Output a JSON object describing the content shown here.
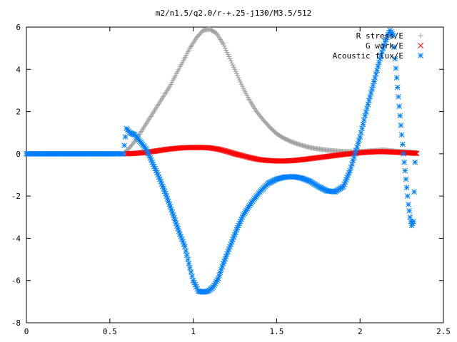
{
  "chart_data": {
    "type": "scatter",
    "title": "m2/n1.5/q2.0/r-+.25-j130/M3.5/512",
    "xlabel": "",
    "ylabel": "",
    "xlim": [
      0,
      2.5
    ],
    "ylim": [
      -8,
      6
    ],
    "x_ticks": [
      "0",
      "0.5",
      "1",
      "1.5",
      "2",
      "2.5"
    ],
    "y_ticks": [
      "-8",
      "-6",
      "-4",
      "-2",
      "0",
      "2",
      "4",
      "6"
    ],
    "grid": false,
    "legend_position": "top-right",
    "series": [
      {
        "name": "R stress/E",
        "marker": "plus",
        "color": "#a0a0a0",
        "x": [
          0.58,
          0.62,
          0.66,
          0.7,
          0.74,
          0.78,
          0.82,
          0.86,
          0.9,
          0.94,
          0.98,
          1.02,
          1.06,
          1.1,
          1.14,
          1.18,
          1.22,
          1.26,
          1.3,
          1.34,
          1.38,
          1.42,
          1.46,
          1.5,
          1.54,
          1.58,
          1.62,
          1.66,
          1.7,
          1.74,
          1.78,
          1.82,
          1.86,
          1.9,
          1.94,
          1.98,
          2.02,
          2.06,
          2.1,
          2.14,
          2.18,
          2.22,
          2.26,
          2.3,
          2.34
        ],
        "y": [
          0.0,
          0.3,
          0.7,
          1.2,
          1.7,
          2.2,
          2.7,
          3.2,
          3.8,
          4.4,
          5.0,
          5.5,
          5.85,
          5.9,
          5.7,
          5.2,
          4.5,
          3.8,
          3.1,
          2.5,
          2.0,
          1.6,
          1.25,
          0.95,
          0.75,
          0.6,
          0.48,
          0.38,
          0.3,
          0.24,
          0.2,
          0.16,
          0.13,
          0.11,
          0.1,
          0.1,
          0.12,
          0.14,
          0.16,
          0.18,
          0.15,
          0.12,
          0.1,
          0.08,
          0.06
        ]
      },
      {
        "name": "G work/E",
        "marker": "cross",
        "color": "#ff0000",
        "x": [
          0.6,
          0.65,
          0.7,
          0.75,
          0.8,
          0.85,
          0.9,
          0.95,
          1.0,
          1.05,
          1.1,
          1.15,
          1.2,
          1.25,
          1.3,
          1.35,
          1.4,
          1.45,
          1.5,
          1.55,
          1.6,
          1.65,
          1.7,
          1.75,
          1.8,
          1.85,
          1.9,
          1.95,
          2.0,
          2.05,
          2.1,
          2.15,
          2.2,
          2.25,
          2.3,
          2.34
        ],
        "y": [
          0.0,
          0.02,
          0.05,
          0.1,
          0.16,
          0.22,
          0.26,
          0.29,
          0.3,
          0.3,
          0.28,
          0.22,
          0.12,
          0.0,
          -0.1,
          -0.2,
          -0.28,
          -0.32,
          -0.34,
          -0.34,
          -0.32,
          -0.28,
          -0.23,
          -0.18,
          -0.13,
          -0.08,
          -0.03,
          0.01,
          0.05,
          0.08,
          0.1,
          0.1,
          0.08,
          0.06,
          0.04,
          0.02
        ]
      },
      {
        "name": "Acoustic flux/E",
        "marker": "star",
        "color": "#0080ff",
        "x": [
          0.0,
          0.1,
          0.2,
          0.3,
          0.4,
          0.5,
          0.58,
          0.6,
          0.62,
          0.65,
          0.68,
          0.72,
          0.76,
          0.8,
          0.84,
          0.88,
          0.92,
          0.95,
          0.98,
          1.0,
          1.03,
          1.06,
          1.09,
          1.12,
          1.15,
          1.18,
          1.22,
          1.26,
          1.3,
          1.35,
          1.4,
          1.45,
          1.5,
          1.55,
          1.6,
          1.65,
          1.7,
          1.75,
          1.8,
          1.85,
          1.9,
          1.94,
          1.97,
          2.0,
          2.03,
          2.06,
          2.09,
          2.12,
          2.15,
          2.18,
          2.2,
          2.21,
          2.22,
          2.23,
          2.24,
          2.25,
          2.26,
          2.27,
          2.28,
          2.29,
          2.3,
          2.31,
          2.32,
          2.33
        ],
        "y": [
          0.0,
          0.0,
          0.0,
          0.0,
          0.0,
          0.0,
          0.0,
          1.2,
          1.0,
          0.9,
          0.6,
          0.2,
          -0.5,
          -1.2,
          -2.0,
          -2.9,
          -3.8,
          -4.4,
          -5.4,
          -6.0,
          -6.5,
          -6.55,
          -6.5,
          -6.3,
          -5.9,
          -5.2,
          -4.4,
          -3.6,
          -2.9,
          -2.3,
          -1.8,
          -1.4,
          -1.2,
          -1.1,
          -1.08,
          -1.15,
          -1.3,
          -1.55,
          -1.75,
          -1.8,
          -1.55,
          -0.8,
          0.0,
          0.8,
          1.8,
          2.7,
          3.6,
          4.5,
          5.3,
          5.85,
          5.6,
          4.5,
          3.6,
          2.7,
          1.8,
          0.9,
          0.0,
          -0.8,
          -1.6,
          -2.4,
          -3.0,
          -3.4,
          -3.2,
          -0.4
        ]
      }
    ]
  }
}
